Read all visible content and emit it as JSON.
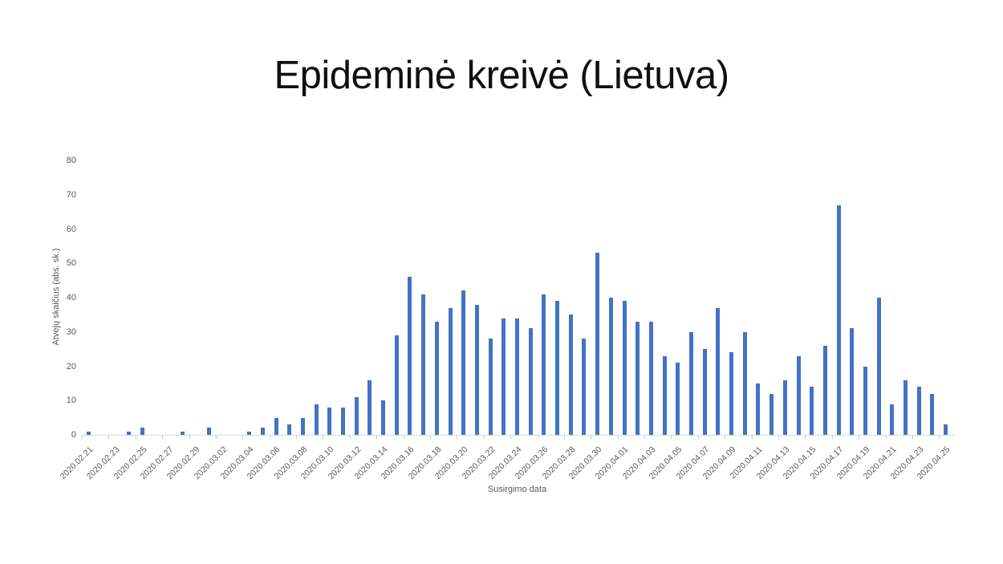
{
  "chart_data": {
    "type": "bar",
    "title": "Epideminė kreivė (Lietuva)",
    "xlabel": "Susirgimo data",
    "ylabel": "Atvejų skaičius (abs. sk.)",
    "ylim": [
      0,
      80
    ],
    "y_ticks": [
      0,
      10,
      20,
      30,
      40,
      50,
      60,
      70,
      80
    ],
    "grid": false,
    "legend_position": "none",
    "bar_color": "#4472C4",
    "x_tick_labels": [
      "2020.02.21",
      "2020.02.23",
      "2020.02.25",
      "2020.02.27",
      "2020.02.29",
      "2020.03.02",
      "2020.03.04",
      "2020.03.06",
      "2020.03.08",
      "2020.03.10",
      "2020.03.12",
      "2020.03.14",
      "2020.03.16",
      "2020.03.18",
      "2020.03.20",
      "2020.03.22",
      "2020.03.24",
      "2020.03.26",
      "2020.03.28",
      "2020.03.30",
      "2020.04.01",
      "2020.04.03",
      "2020.04.05",
      "2020.04.07",
      "2020.04.09",
      "2020.04.11",
      "2020.04.13",
      "2020.04.15",
      "2020.04.17",
      "2020.04.19",
      "2020.04.21",
      "2020.04.23",
      "2020.04.25"
    ],
    "categories": [
      "2020.02.21",
      "2020.02.22",
      "2020.02.23",
      "2020.02.24",
      "2020.02.25",
      "2020.02.26",
      "2020.02.27",
      "2020.02.28",
      "2020.02.29",
      "2020.03.01",
      "2020.03.02",
      "2020.03.03",
      "2020.03.04",
      "2020.03.05",
      "2020.03.06",
      "2020.03.07",
      "2020.03.08",
      "2020.03.09",
      "2020.03.10",
      "2020.03.11",
      "2020.03.12",
      "2020.03.13",
      "2020.03.14",
      "2020.03.15",
      "2020.03.16",
      "2020.03.17",
      "2020.03.18",
      "2020.03.19",
      "2020.03.20",
      "2020.03.21",
      "2020.03.22",
      "2020.03.23",
      "2020.03.24",
      "2020.03.25",
      "2020.03.26",
      "2020.03.27",
      "2020.03.28",
      "2020.03.29",
      "2020.03.30",
      "2020.03.31",
      "2020.04.01",
      "2020.04.02",
      "2020.04.03",
      "2020.04.04",
      "2020.04.05",
      "2020.04.06",
      "2020.04.07",
      "2020.04.08",
      "2020.04.09",
      "2020.04.10",
      "2020.04.11",
      "2020.04.12",
      "2020.04.13",
      "2020.04.14",
      "2020.04.15",
      "2020.04.16",
      "2020.04.17",
      "2020.04.18",
      "2020.04.19",
      "2020.04.20",
      "2020.04.21",
      "2020.04.22",
      "2020.04.23",
      "2020.04.24",
      "2020.04.25"
    ],
    "values": [
      1,
      0,
      0,
      1,
      2,
      0,
      0,
      1,
      0,
      2,
      0,
      0,
      1,
      2,
      5,
      3,
      5,
      9,
      8,
      8,
      11,
      16,
      10,
      29,
      46,
      41,
      33,
      37,
      42,
      38,
      28,
      34,
      34,
      31,
      41,
      39,
      35,
      28,
      53,
      40,
      39,
      33,
      33,
      23,
      21,
      30,
      25,
      37,
      24,
      30,
      15,
      12,
      16,
      23,
      14,
      26,
      67,
      31,
      20,
      40,
      9,
      16,
      14,
      12,
      3
    ]
  },
  "colors": {
    "bar": "#4472C4",
    "title_text": "#101010",
    "axis_text": "#595959",
    "axis_line": "#d9d9d9"
  }
}
